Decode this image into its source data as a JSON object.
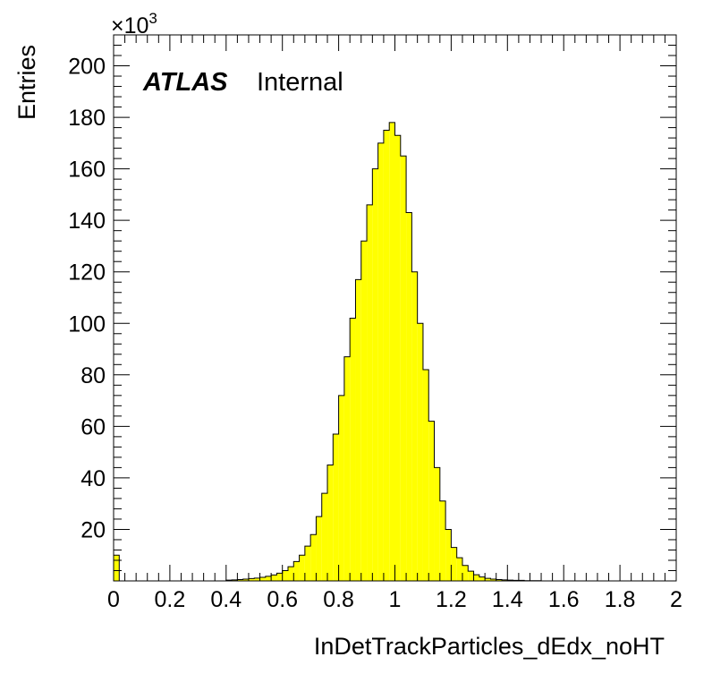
{
  "chart_data": {
    "type": "bar",
    "style": "histogram",
    "xlabel": "InDetTrackParticles_dEdx_noHT",
    "ylabel": "Entries",
    "y_multiplier_label": "×10",
    "y_multiplier_exponent": "3",
    "xlim": [
      0,
      2
    ],
    "ylim": [
      0,
      212
    ],
    "x_ticks": [
      0,
      0.2,
      0.4,
      0.6,
      0.8,
      1,
      1.2,
      1.4,
      1.6,
      1.8,
      2
    ],
    "x_tick_labels": [
      "0",
      "0.2",
      "0.4",
      "0.6",
      "0.8",
      "1",
      "1.2",
      "1.4",
      "1.6",
      "1.8",
      "2"
    ],
    "y_ticks": [
      20,
      40,
      60,
      80,
      100,
      120,
      140,
      160,
      180,
      200
    ],
    "y_tick_labels": [
      "20",
      "40",
      "60",
      "80",
      "100",
      "120",
      "140",
      "160",
      "180",
      "200"
    ],
    "bin_width": 0.02,
    "bin_low_edges": [
      0,
      0.02,
      0.04,
      0.06,
      0.08,
      0.1,
      0.12,
      0.14,
      0.16,
      0.18,
      0.2,
      0.22,
      0.24,
      0.26,
      0.28,
      0.3,
      0.32,
      0.34,
      0.36,
      0.38,
      0.4,
      0.42,
      0.44,
      0.46,
      0.48,
      0.5,
      0.52,
      0.54,
      0.56,
      0.58,
      0.6,
      0.62,
      0.64,
      0.66,
      0.68,
      0.7,
      0.72,
      0.74,
      0.76,
      0.78,
      0.8,
      0.82,
      0.84,
      0.86,
      0.88,
      0.9,
      0.92,
      0.94,
      0.96,
      0.98,
      1.0,
      1.02,
      1.04,
      1.06,
      1.08,
      1.1,
      1.12,
      1.14,
      1.16,
      1.18,
      1.2,
      1.22,
      1.24,
      1.26,
      1.28,
      1.3,
      1.32,
      1.34,
      1.36,
      1.38,
      1.4,
      1.42,
      1.44,
      1.46,
      1.48,
      1.5,
      1.52,
      1.54,
      1.56,
      1.58,
      1.6,
      1.62,
      1.64,
      1.66,
      1.68,
      1.7,
      1.72,
      1.74,
      1.76,
      1.78,
      1.8,
      1.82,
      1.84,
      1.86,
      1.88,
      1.9,
      1.92,
      1.94,
      1.96,
      1.98
    ],
    "values": [
      10,
      0,
      0,
      0,
      0,
      0,
      0,
      0,
      0,
      0,
      0,
      0,
      0,
      0,
      0,
      0,
      0,
      0,
      0,
      0,
      0.3,
      0.4,
      0.5,
      0.7,
      0.9,
      1.1,
      1.4,
      1.8,
      2.3,
      3,
      4,
      5.5,
      7.5,
      10,
      13.5,
      18,
      25,
      34,
      45,
      57,
      72,
      87,
      102,
      117,
      132,
      146,
      160,
      170,
      175,
      178,
      173,
      165,
      143,
      120,
      100,
      82,
      62,
      44,
      31,
      20,
      13,
      9,
      6,
      3.8,
      2.4,
      1.5,
      1,
      0.7,
      0.5,
      0.4,
      0.3,
      0.2,
      0.2,
      0.1,
      0.1,
      0.1,
      0,
      0,
      0,
      0,
      0,
      0,
      0,
      0,
      0,
      0,
      0,
      0,
      0,
      0,
      0,
      0,
      0,
      0,
      0,
      0,
      0,
      0,
      0,
      0
    ],
    "fill_color": "#ffff00",
    "line_color": "#000000",
    "grid": false,
    "legend": "none",
    "annotation": {
      "bold": "ATLAS",
      "normal": "Internal"
    }
  }
}
